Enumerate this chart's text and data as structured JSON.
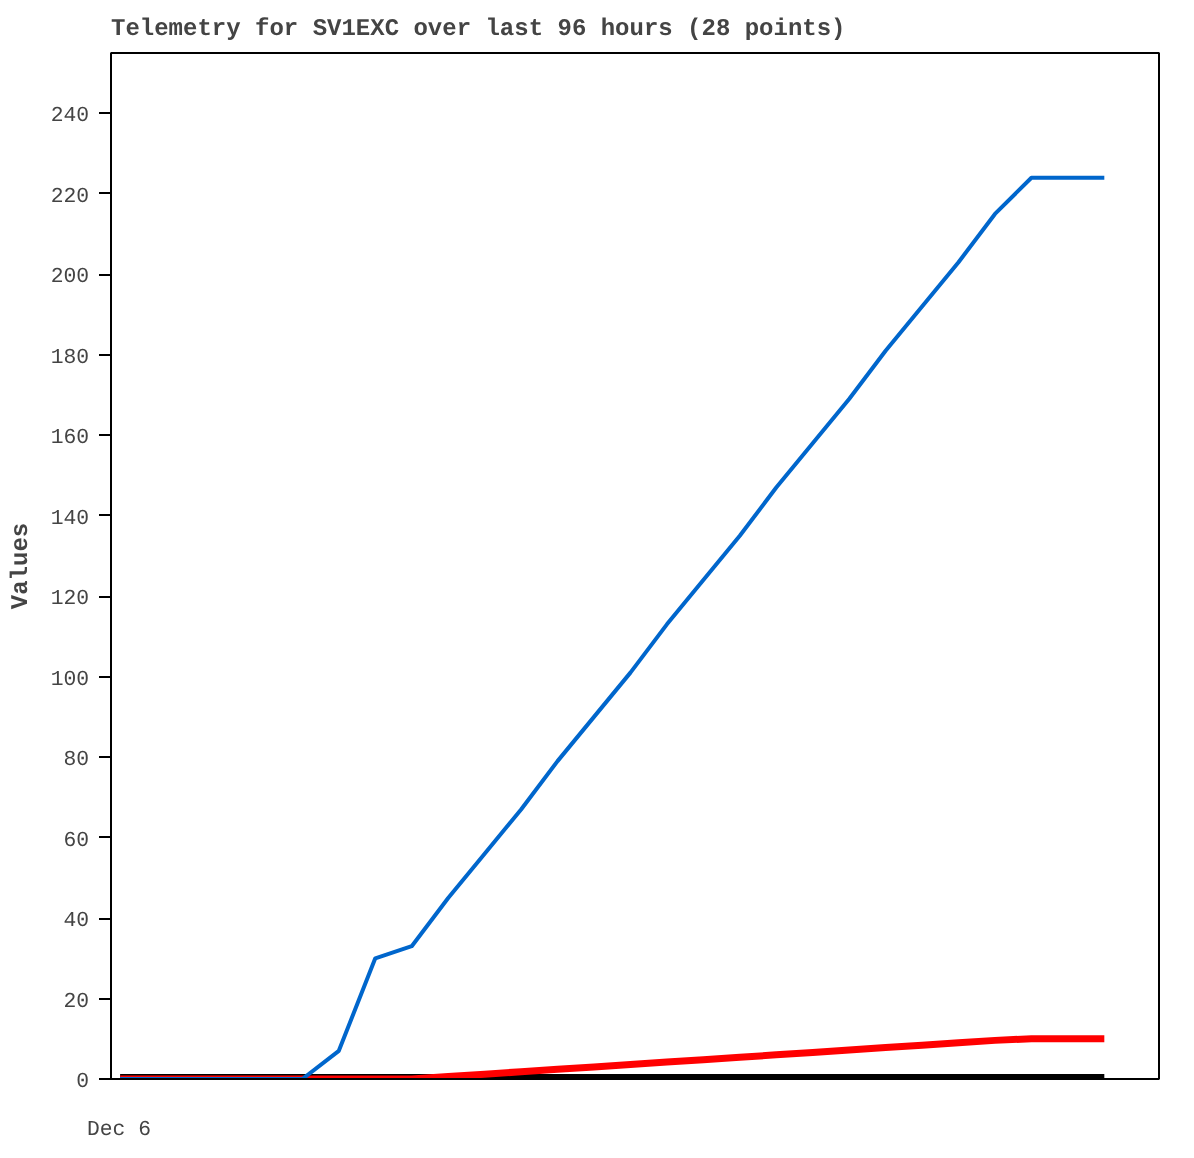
{
  "chart_data": {
    "type": "line",
    "title": "Telemetry for SV1EXC over last 96 hours (28 points)",
    "ylabel": "Values",
    "annotations": [
      "Dec 6"
    ],
    "categories": [
      null,
      null,
      null,
      null,
      null,
      null,
      null,
      null,
      null,
      null,
      null,
      null,
      null,
      null,
      null,
      null,
      null,
      null,
      null,
      null,
      null,
      null,
      null,
      null,
      null,
      null,
      null,
      null
    ],
    "ylim": [
      0,
      255
    ],
    "yticks": [
      0,
      20,
      40,
      60,
      80,
      100,
      120,
      140,
      160,
      180,
      200,
      220,
      240
    ],
    "grid": false,
    "line_style": "solid",
    "marker": "none",
    "series": [
      {
        "color": "#000000",
        "values": [
          0,
          0,
          0,
          0,
          0,
          0,
          0,
          0,
          0,
          0,
          0,
          0,
          0,
          0,
          0,
          0,
          0,
          0,
          0,
          0,
          0,
          0,
          0,
          0,
          0,
          0,
          0,
          0
        ]
      },
      {
        "color": "#ff0000",
        "values": [
          0,
          0,
          0,
          0,
          0,
          0,
          0,
          0,
          0,
          0.6,
          1.2,
          1.8,
          2.4,
          3.0,
          3.6,
          4.2,
          4.8,
          5.4,
          6.0,
          6.6,
          7.2,
          7.8,
          8.4,
          9.0,
          9.6,
          10,
          10,
          10
        ]
      },
      {
        "color": "#0066cc",
        "values": [
          0,
          0,
          0,
          0,
          0,
          0,
          7,
          30,
          33,
          45,
          56,
          67,
          79,
          90,
          101,
          113,
          124,
          135,
          147,
          158,
          169,
          181,
          192,
          203,
          215,
          224,
          224,
          224
        ]
      }
    ]
  }
}
